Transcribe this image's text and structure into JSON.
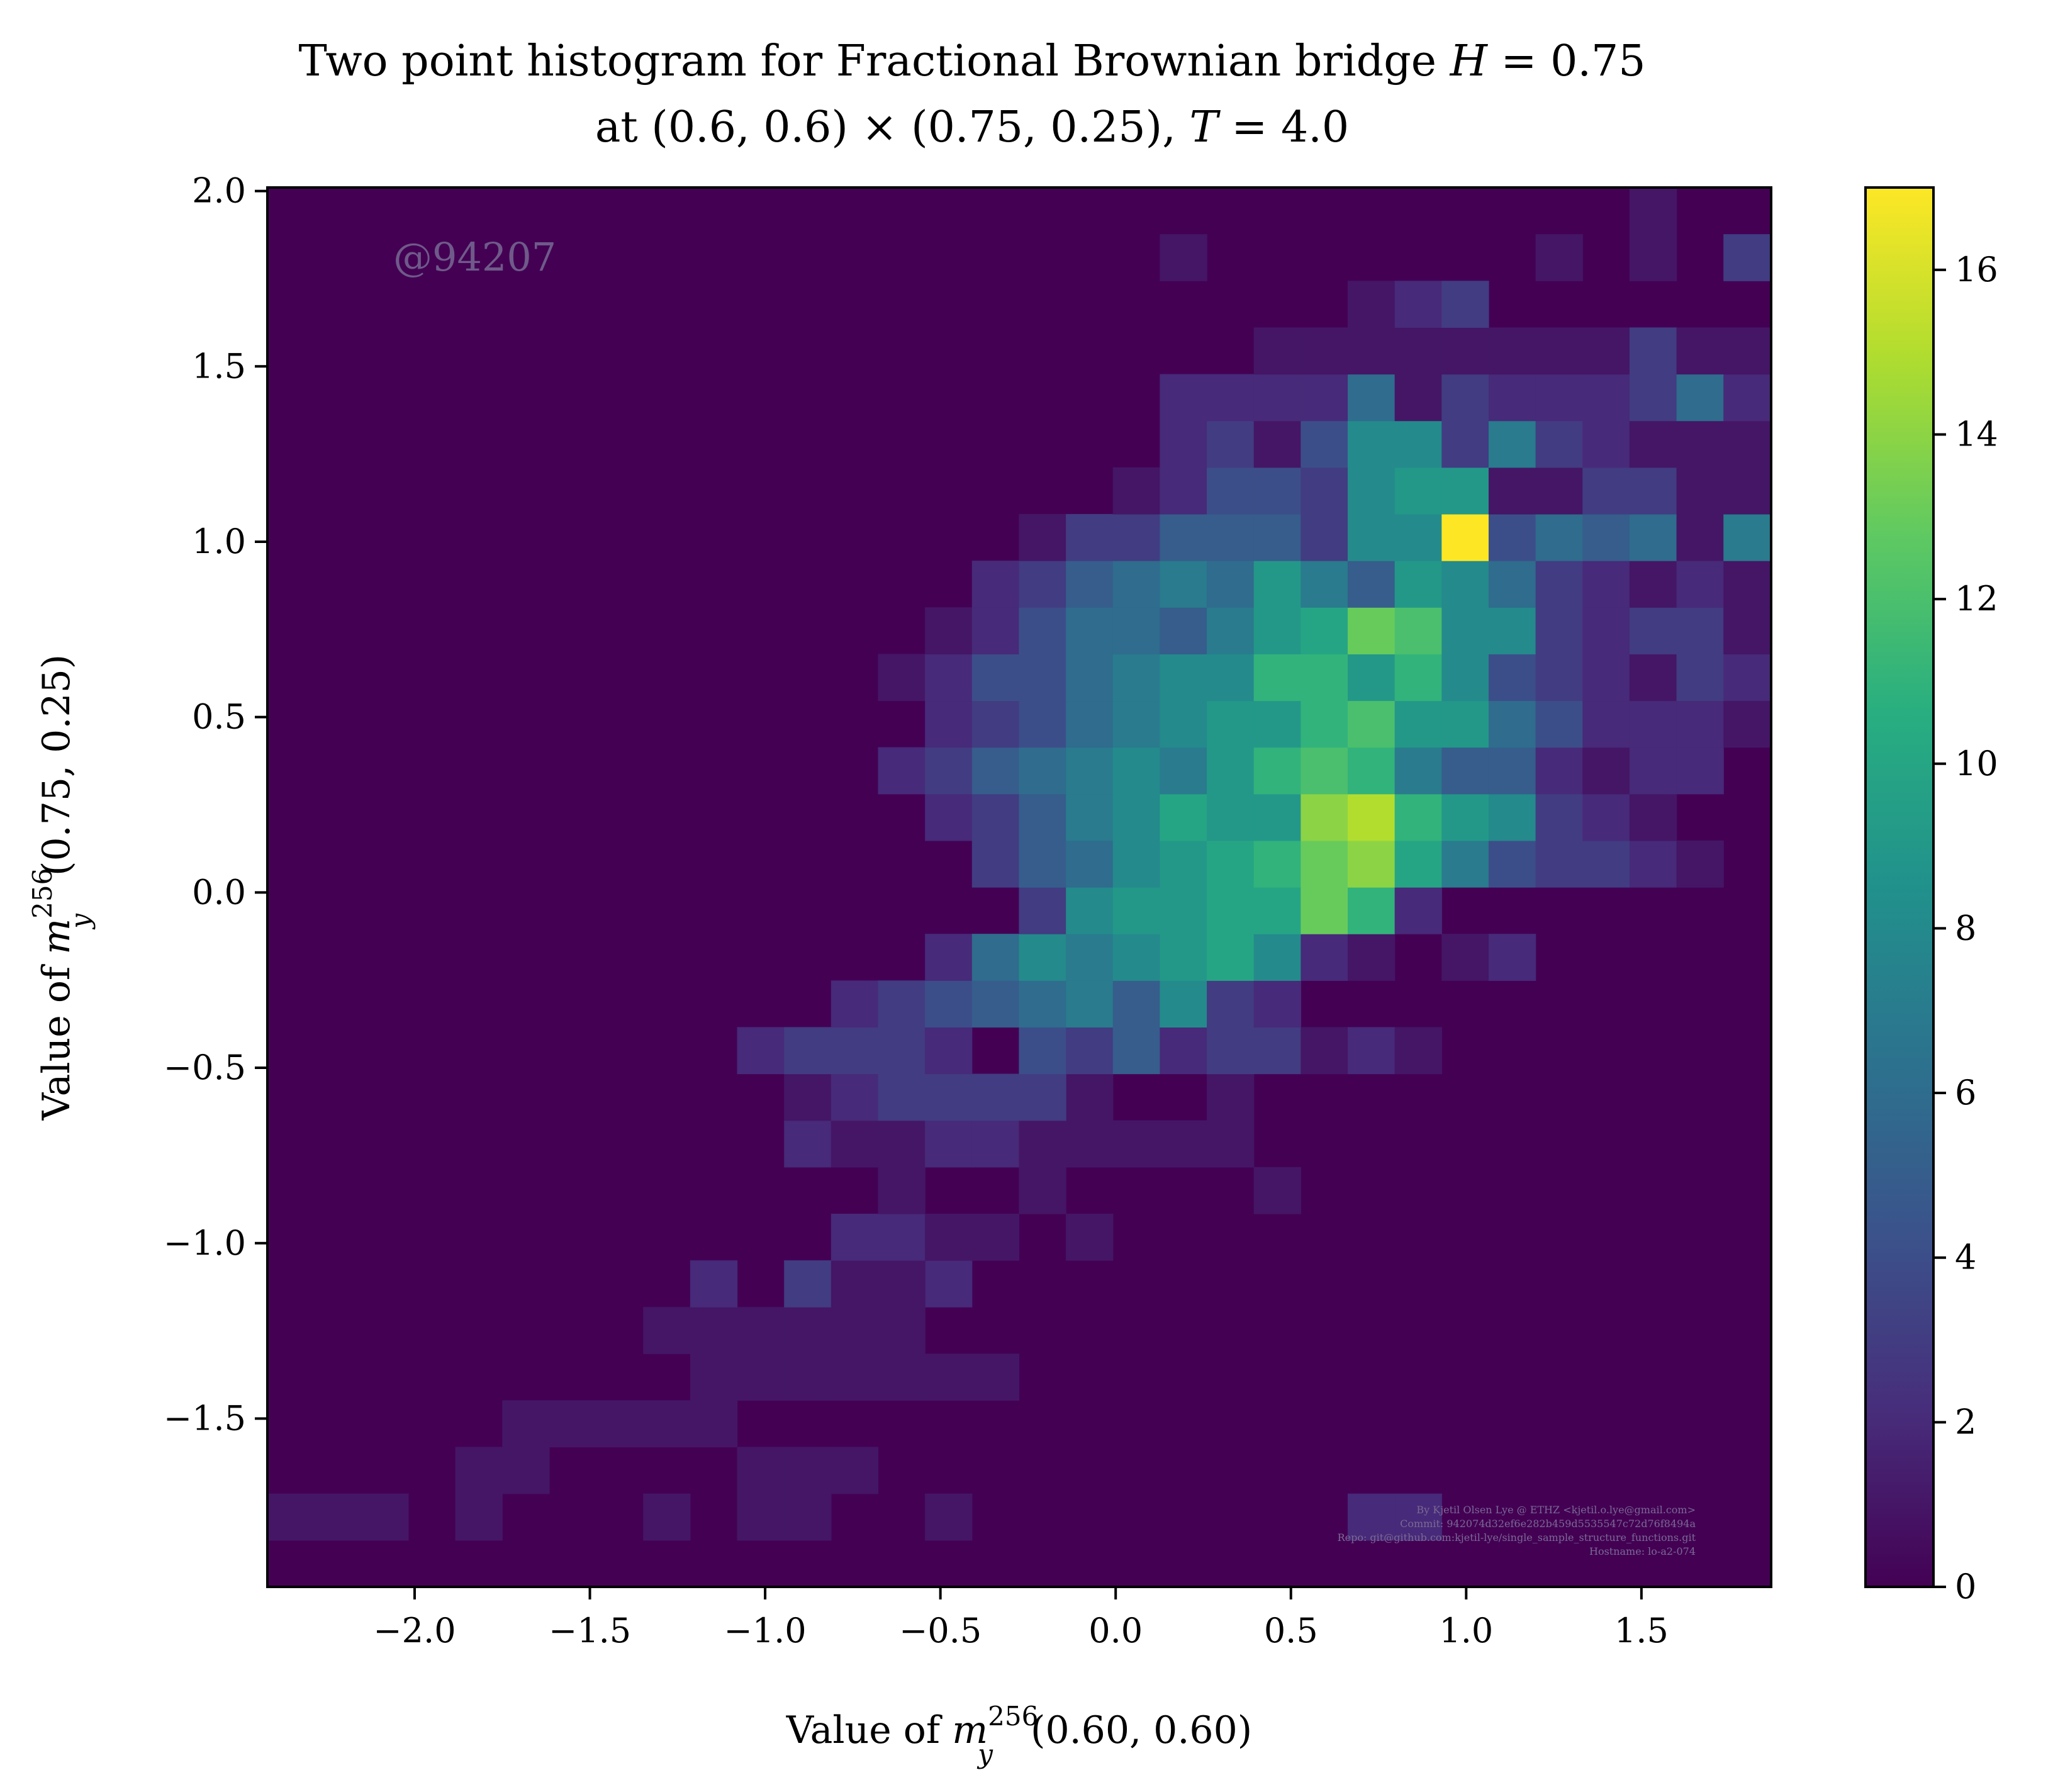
{
  "chart_data": {
    "type": "heatmap",
    "title_lines": [
      "Two point histogram for Fractional Brownian bridge H = 0.75",
      "at (0.6, 0.6) × (0.75, 0.25), T = 4.0"
    ],
    "xlabel": "Value of m_y^256(0.60, 0.60)",
    "ylabel": "Value of m_y^256(0.75, 0.25)",
    "xlim": [
      -2.42,
      1.87
    ],
    "ylim": [
      -1.98,
      2.01
    ],
    "xticks": [
      -2.0,
      -1.5,
      -1.0,
      -0.5,
      0.0,
      0.5,
      1.0,
      1.5
    ],
    "xtick_labels": [
      "−2.0",
      "−1.5",
      "−1.0",
      "−0.5",
      "0.0",
      "0.5",
      "1.0",
      "1.5"
    ],
    "yticks": [
      -1.5,
      -1.0,
      -0.5,
      0.0,
      0.5,
      1.0,
      1.5,
      2.0
    ],
    "ytick_labels": [
      "−1.5",
      "−1.0",
      "−0.5",
      "0.0",
      "0.5",
      "1.0",
      "1.5",
      "2.0"
    ],
    "colorbar": {
      "min": 0,
      "max": 17,
      "ticks": [
        0,
        2,
        4,
        6,
        8,
        10,
        12,
        14,
        16
      ],
      "tick_labels": [
        "0",
        "2",
        "4",
        "6",
        "8",
        "10",
        "12",
        "14",
        "16"
      ],
      "colormap": "viridis"
    },
    "grid": false,
    "bins": {
      "nx": 32,
      "ny": 30,
      "x0": -2.42,
      "dx": 0.134,
      "y0": -1.98,
      "dy": 0.133
    },
    "cells": [
      [
        1,
        0,
        1
      ],
      [
        1,
        1,
        1
      ],
      [
        1,
        2,
        1
      ],
      [
        2,
        24,
        1
      ],
      [
        2,
        23,
        1
      ],
      [
        1,
        4,
        1
      ],
      [
        1,
        5,
        3
      ],
      [
        1,
        6,
        3
      ],
      [
        1,
        8,
        1
      ],
      [
        1,
        10,
        1
      ],
      [
        1,
        11,
        1
      ],
      [
        1,
        4,
        2
      ],
      [
        1,
        5,
        2
      ],
      [
        1,
        7,
        3
      ],
      [
        1,
        12,
        2
      ],
      [
        1,
        8,
        3
      ],
      [
        1,
        10,
        2
      ],
      [
        1,
        9,
        3
      ],
      [
        1,
        11,
        2
      ],
      [
        1,
        14,
        1
      ],
      [
        1,
        9,
        4
      ],
      [
        1,
        10,
        4
      ],
      [
        1,
        11,
        4
      ],
      [
        1,
        12,
        4
      ],
      [
        1,
        13,
        4
      ],
      [
        1,
        14,
        4
      ],
      [
        1,
        15,
        4
      ],
      [
        1,
        8,
        5
      ],
      [
        1,
        9,
        5
      ],
      [
        1,
        10,
        5
      ],
      [
        1,
        11,
        5
      ],
      [
        1,
        12,
        5
      ],
      [
        1,
        13,
        5
      ],
      [
        2,
        9,
        6
      ],
      [
        2,
        14,
        6
      ],
      [
        3,
        11,
        6
      ],
      [
        1,
        12,
        6
      ],
      [
        1,
        13,
        6
      ],
      [
        2,
        12,
        7
      ],
      [
        2,
        13,
        7
      ],
      [
        1,
        14,
        7
      ],
      [
        1,
        15,
        7
      ],
      [
        1,
        17,
        7
      ],
      [
        1,
        13,
        8
      ],
      [
        1,
        16,
        8
      ],
      [
        1,
        21,
        8
      ],
      [
        2,
        11,
        9
      ],
      [
        1,
        12,
        9
      ],
      [
        1,
        13,
        9
      ],
      [
        2,
        14,
        9
      ],
      [
        2,
        15,
        9
      ],
      [
        1,
        16,
        9
      ],
      [
        1,
        17,
        9
      ],
      [
        1,
        18,
        9
      ],
      [
        1,
        19,
        9
      ],
      [
        1,
        20,
        9
      ],
      [
        1,
        16,
        10
      ],
      [
        1,
        17,
        10
      ],
      [
        1,
        20,
        10
      ],
      [
        1,
        11,
        10
      ],
      [
        2,
        12,
        10
      ],
      [
        3,
        13,
        10
      ],
      [
        3,
        14,
        10
      ],
      [
        3,
        15,
        10
      ],
      [
        3,
        16,
        10
      ],
      [
        1,
        17,
        10
      ],
      [
        2,
        10,
        11
      ],
      [
        3,
        11,
        11
      ],
      [
        3,
        12,
        11
      ],
      [
        3,
        13,
        11
      ],
      [
        2,
        14,
        11
      ],
      [
        4,
        16,
        11
      ],
      [
        3,
        17,
        11
      ],
      [
        5,
        18,
        11
      ],
      [
        2,
        19,
        11
      ],
      [
        3,
        20,
        11
      ],
      [
        3,
        21,
        11
      ],
      [
        1,
        22,
        11
      ],
      [
        2,
        23,
        11
      ],
      [
        1,
        24,
        11
      ],
      [
        2,
        12,
        12
      ],
      [
        3,
        13,
        12
      ],
      [
        4,
        14,
        12
      ],
      [
        5,
        15,
        12
      ],
      [
        6,
        16,
        12
      ],
      [
        7,
        17,
        12
      ],
      [
        5,
        18,
        12
      ],
      [
        8,
        19,
        12
      ],
      [
        3,
        20,
        12
      ],
      [
        2,
        21,
        12
      ],
      [
        2,
        14,
        13
      ],
      [
        6,
        15,
        13
      ],
      [
        8,
        16,
        13
      ],
      [
        7,
        17,
        13
      ],
      [
        8,
        18,
        13
      ],
      [
        9,
        19,
        13
      ],
      [
        10,
        20,
        13
      ],
      [
        8,
        21,
        13
      ],
      [
        2,
        22,
        13
      ],
      [
        1,
        23,
        13
      ],
      [
        1,
        25,
        13
      ],
      [
        2,
        26,
        13
      ],
      [
        3,
        16,
        14
      ],
      [
        8,
        17,
        14
      ],
      [
        9,
        18,
        14
      ],
      [
        9,
        19,
        14
      ],
      [
        10,
        20,
        14
      ],
      [
        10,
        21,
        14
      ],
      [
        13,
        22,
        14
      ],
      [
        11,
        23,
        14
      ],
      [
        2,
        24,
        14
      ],
      [
        3,
        15,
        15
      ],
      [
        5,
        16,
        15
      ],
      [
        6,
        17,
        15
      ],
      [
        8,
        18,
        15
      ],
      [
        9,
        19,
        15
      ],
      [
        10,
        20,
        15
      ],
      [
        11,
        21,
        15
      ],
      [
        13,
        22,
        15
      ],
      [
        14,
        23,
        15
      ],
      [
        10,
        24,
        15
      ],
      [
        7,
        25,
        15
      ],
      [
        4,
        26,
        15
      ],
      [
        3,
        27,
        15
      ],
      [
        3,
        28,
        15
      ],
      [
        2,
        29,
        15
      ],
      [
        1,
        30,
        15
      ],
      [
        2,
        14,
        16
      ],
      [
        3,
        15,
        16
      ],
      [
        5,
        16,
        16
      ],
      [
        7,
        17,
        16
      ],
      [
        8,
        18,
        16
      ],
      [
        10,
        19,
        16
      ],
      [
        9,
        20,
        16
      ],
      [
        9,
        21,
        16
      ],
      [
        14,
        22,
        16
      ],
      [
        15,
        23,
        16
      ],
      [
        11,
        24,
        16
      ],
      [
        9,
        25,
        16
      ],
      [
        8,
        26,
        16
      ],
      [
        3,
        27,
        16
      ],
      [
        2,
        28,
        16
      ],
      [
        1,
        29,
        16
      ],
      [
        2,
        13,
        17
      ],
      [
        3,
        14,
        17
      ],
      [
        5,
        15,
        17
      ],
      [
        6,
        16,
        17
      ],
      [
        7,
        17,
        17
      ],
      [
        8,
        18,
        17
      ],
      [
        7,
        19,
        17
      ],
      [
        9,
        20,
        17
      ],
      [
        11,
        21,
        17
      ],
      [
        12,
        22,
        17
      ],
      [
        11,
        23,
        17
      ],
      [
        7,
        24,
        17
      ],
      [
        5,
        25,
        17
      ],
      [
        5,
        26,
        17
      ],
      [
        2,
        27,
        17
      ],
      [
        1,
        28,
        17
      ],
      [
        2,
        29,
        17
      ],
      [
        2,
        30,
        17
      ],
      [
        2,
        14,
        18
      ],
      [
        3,
        15,
        18
      ],
      [
        4,
        16,
        18
      ],
      [
        6,
        17,
        18
      ],
      [
        7,
        18,
        18
      ],
      [
        8,
        19,
        18
      ],
      [
        9,
        20,
        18
      ],
      [
        9,
        21,
        18
      ],
      [
        11,
        22,
        18
      ],
      [
        12,
        23,
        18
      ],
      [
        9,
        24,
        18
      ],
      [
        9,
        25,
        18
      ],
      [
        6,
        26,
        18
      ],
      [
        4,
        27,
        18
      ],
      [
        2,
        28,
        18
      ],
      [
        2,
        29,
        18
      ],
      [
        2,
        30,
        18
      ],
      [
        1,
        31,
        18
      ],
      [
        1,
        13,
        19
      ],
      [
        2,
        14,
        19
      ],
      [
        4,
        15,
        19
      ],
      [
        4,
        16,
        19
      ],
      [
        6,
        17,
        19
      ],
      [
        7,
        18,
        19
      ],
      [
        8,
        19,
        19
      ],
      [
        8,
        20,
        19
      ],
      [
        11,
        21,
        19
      ],
      [
        11,
        22,
        19
      ],
      [
        9,
        23,
        19
      ],
      [
        11,
        24,
        19
      ],
      [
        8,
        25,
        19
      ],
      [
        4,
        26,
        19
      ],
      [
        3,
        27,
        19
      ],
      [
        2,
        28,
        19
      ],
      [
        1,
        29,
        19
      ],
      [
        3,
        30,
        19
      ],
      [
        2,
        31,
        19
      ],
      [
        1,
        14,
        20
      ],
      [
        2,
        15,
        20
      ],
      [
        4,
        16,
        20
      ],
      [
        6,
        17,
        20
      ],
      [
        6,
        18,
        20
      ],
      [
        5,
        19,
        20
      ],
      [
        7,
        20,
        20
      ],
      [
        9,
        21,
        20
      ],
      [
        10,
        22,
        20
      ],
      [
        13,
        23,
        20
      ],
      [
        12,
        24,
        20
      ],
      [
        8,
        25,
        20
      ],
      [
        8,
        26,
        20
      ],
      [
        3,
        27,
        20
      ],
      [
        2,
        28,
        20
      ],
      [
        3,
        29,
        20
      ],
      [
        3,
        30,
        20
      ],
      [
        1,
        31,
        20
      ],
      [
        2,
        15,
        21
      ],
      [
        3,
        16,
        21
      ],
      [
        5,
        17,
        21
      ],
      [
        6,
        18,
        21
      ],
      [
        7,
        19,
        21
      ],
      [
        6,
        20,
        21
      ],
      [
        9,
        21,
        21
      ],
      [
        7,
        22,
        21
      ],
      [
        5,
        23,
        21
      ],
      [
        9,
        24,
        21
      ],
      [
        8,
        25,
        21
      ],
      [
        6,
        26,
        21
      ],
      [
        3,
        27,
        21
      ],
      [
        2,
        28,
        21
      ],
      [
        1,
        29,
        21
      ],
      [
        2,
        30,
        21
      ],
      [
        1,
        31,
        21
      ],
      [
        1,
        16,
        22
      ],
      [
        3,
        17,
        22
      ],
      [
        3,
        18,
        22
      ],
      [
        5,
        19,
        22
      ],
      [
        5,
        20,
        22
      ],
      [
        5,
        21,
        22
      ],
      [
        3,
        22,
        22
      ],
      [
        8,
        23,
        22
      ],
      [
        8,
        24,
        22
      ],
      [
        17,
        25,
        22
      ],
      [
        4,
        26,
        22
      ],
      [
        6,
        27,
        22
      ],
      [
        5,
        28,
        22
      ],
      [
        6,
        29,
        22
      ],
      [
        1,
        30,
        22
      ],
      [
        7,
        31,
        22
      ],
      [
        1,
        18,
        23
      ],
      [
        2,
        19,
        23
      ],
      [
        4,
        20,
        23
      ],
      [
        4,
        21,
        23
      ],
      [
        3,
        22,
        23
      ],
      [
        8,
        23,
        23
      ],
      [
        9,
        24,
        23
      ],
      [
        9,
        25,
        23
      ],
      [
        1,
        26,
        23
      ],
      [
        1,
        27,
        23
      ],
      [
        3,
        28,
        23
      ],
      [
        3,
        29,
        23
      ],
      [
        1,
        30,
        23
      ],
      [
        1,
        31,
        23
      ],
      [
        2,
        19,
        24
      ],
      [
        3,
        20,
        24
      ],
      [
        1,
        21,
        24
      ],
      [
        4,
        22,
        24
      ],
      [
        8,
        23,
        24
      ],
      [
        8,
        24,
        24
      ],
      [
        3,
        25,
        24
      ],
      [
        7,
        26,
        24
      ],
      [
        3,
        27,
        24
      ],
      [
        2,
        28,
        24
      ],
      [
        1,
        29,
        24
      ],
      [
        1,
        30,
        24
      ],
      [
        1,
        31,
        24
      ],
      [
        2,
        19,
        25
      ],
      [
        2,
        20,
        25
      ],
      [
        2,
        21,
        25
      ],
      [
        2,
        22,
        25
      ],
      [
        6,
        23,
        25
      ],
      [
        1,
        24,
        25
      ],
      [
        3,
        25,
        25
      ],
      [
        2,
        26,
        25
      ],
      [
        2,
        27,
        25
      ],
      [
        2,
        28,
        25
      ],
      [
        3,
        29,
        25
      ],
      [
        6,
        30,
        25
      ],
      [
        2,
        31,
        25
      ],
      [
        1,
        21,
        26
      ],
      [
        1,
        22,
        26
      ],
      [
        1,
        23,
        26
      ],
      [
        1,
        24,
        26
      ],
      [
        1,
        25,
        26
      ],
      [
        1,
        26,
        26
      ],
      [
        1,
        27,
        26
      ],
      [
        1,
        28,
        26
      ],
      [
        3,
        29,
        26
      ],
      [
        1,
        30,
        26
      ],
      [
        1,
        31,
        26
      ],
      [
        1,
        23,
        27
      ],
      [
        2,
        24,
        27
      ],
      [
        3,
        25,
        27
      ],
      [
        1,
        19,
        28
      ],
      [
        1,
        27,
        28
      ],
      [
        1,
        29,
        28
      ],
      [
        3,
        31,
        28
      ],
      [
        1,
        29,
        29
      ]
    ]
  },
  "watermark": "@94207",
  "credits": [
    "By Kjetil Olsen Lye @ ETHZ <kjetil.o.lye@gmail.com>",
    "Commit: 942074d32ef6e282b459d5535547c72d76f8494a",
    "Repo: git@github.com:kjetil-lye/single_sample_structure_functions.git",
    "Hostname: lo-a2-074"
  ]
}
